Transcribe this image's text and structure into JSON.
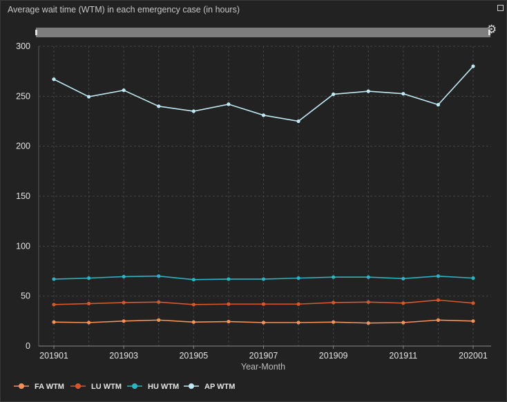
{
  "panel": {
    "title": "Average wait time (WTM) in each emergency case (in hours)",
    "maximize_icon": "maximize-icon",
    "settings_icon": "gear-icon"
  },
  "chart_data": {
    "type": "line",
    "title": "Average wait time (WTM) in each emergency case (in hours)",
    "xlabel": "Year-Month",
    "ylabel": "",
    "ylim": [
      0,
      300
    ],
    "yticks": [
      0,
      50,
      100,
      150,
      200,
      250,
      300
    ],
    "x": [
      "201901",
      "201902",
      "201903",
      "201904",
      "201905",
      "201906",
      "201907",
      "201908",
      "201909",
      "201910",
      "201911",
      "201912",
      "202001"
    ],
    "xtick_labels": [
      "201901",
      "201903",
      "201905",
      "201907",
      "201909",
      "201911",
      "202001"
    ],
    "grid": true,
    "legend_position": "bottom-left",
    "series": [
      {
        "name": "FA WTM",
        "color": "#f4925a",
        "values": [
          24,
          23.5,
          25,
          26,
          24,
          24.5,
          23.5,
          23.5,
          24,
          23,
          23.5,
          26,
          25
        ]
      },
      {
        "name": "LU WTM",
        "color": "#d6582a",
        "values": [
          41.5,
          42.5,
          43.5,
          44,
          41.5,
          42,
          42,
          42,
          43.5,
          44,
          43,
          46,
          43
        ]
      },
      {
        "name": "HU WTM",
        "color": "#2bb5c4",
        "values": [
          67,
          68,
          69.5,
          70,
          66.5,
          67,
          67,
          68,
          69,
          69,
          67.5,
          70,
          68
        ]
      },
      {
        "name": "AP WTM",
        "color": "#bfeaf4",
        "values": [
          267,
          249.5,
          256,
          240,
          235,
          242,
          231,
          225,
          252,
          255,
          252.5,
          241.5,
          280
        ]
      }
    ]
  }
}
